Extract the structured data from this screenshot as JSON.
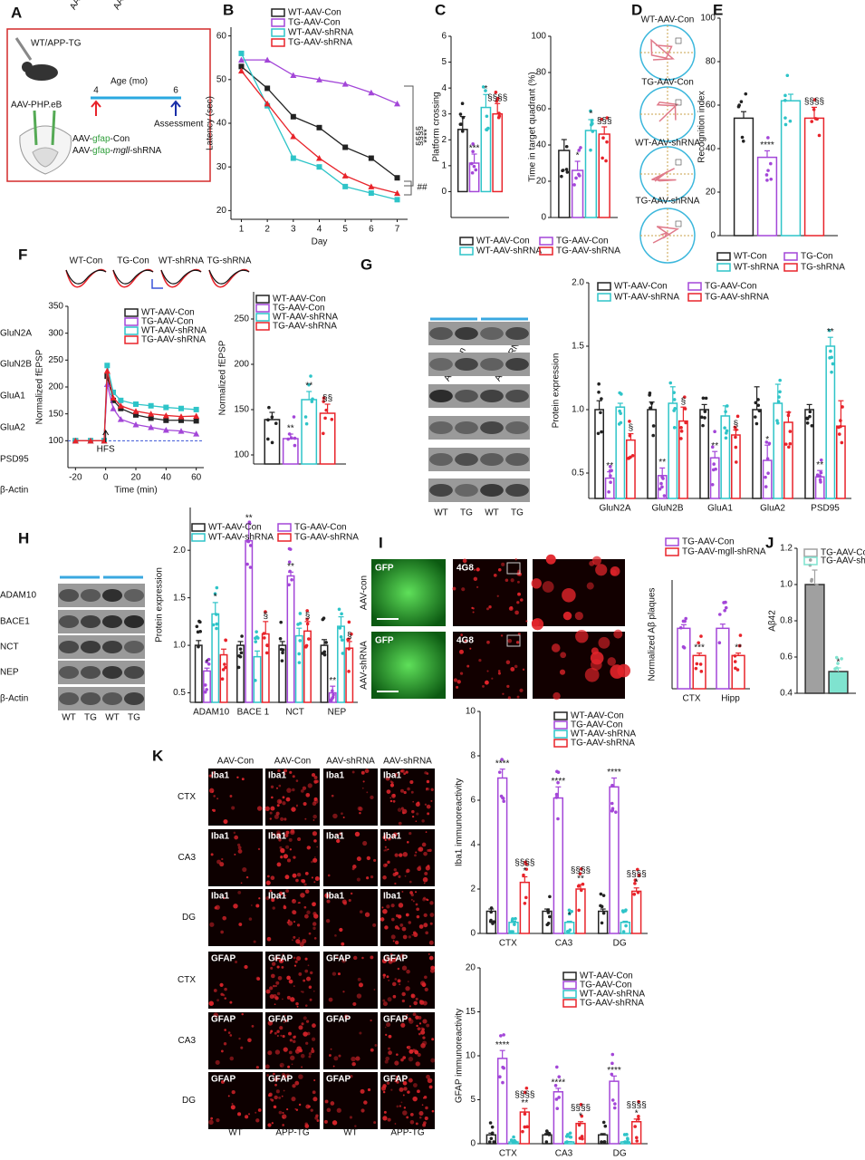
{
  "panel_labels": [
    "A",
    "B",
    "C",
    "D",
    "E",
    "F",
    "G",
    "H",
    "I",
    "J",
    "K"
  ],
  "panel_a": {
    "genotype": "WT/APP-TG",
    "vector": "AAV-PHP.eB",
    "age_title": "Age (mo)",
    "age_start": 4,
    "age_end": 6,
    "assessment": "Assessment",
    "constructs": [
      [
        "AAV-",
        "gfap",
        "-Con"
      ],
      [
        "AAV-",
        "gfap",
        "-",
        "mgll",
        "-shRNA"
      ]
    ]
  },
  "panel_d": [
    "WT-AAV-Con",
    "TG-AAV-Con",
    "WT-AAV-shRNA",
    "TG-AAV-shRNA"
  ],
  "panel_f_traces": [
    "WT-Con",
    "TG-Con",
    "WT-shRNA",
    "TG-shRNA"
  ],
  "panel_g_blot": {
    "groups": [
      "AAV-Con",
      "AAV-shRNA"
    ],
    "rows": [
      "GluN2A",
      "GluN2B",
      "GluA1",
      "GluA2",
      "PSD95",
      "β-Actin"
    ],
    "lanes": [
      "WT",
      "TG",
      "WT",
      "TG"
    ]
  },
  "panel_h_blot": {
    "groups": [
      "AAV-Con",
      "AAV-shRNA"
    ],
    "rows": [
      "ADAM10",
      "BACE1",
      "NCT",
      "NEP",
      "β-Actin"
    ],
    "lanes": [
      "WT",
      "TG",
      "WT",
      "TG"
    ]
  },
  "panel_i_images": {
    "rows": [
      "AAV-con",
      "AAV-shRNA"
    ],
    "stains": [
      "GFP",
      "4G8"
    ]
  },
  "panel_k_images": {
    "columns": [
      "AAV-Con",
      "AAV-Con",
      "AAV-shRNA",
      "AAV-shRNA"
    ],
    "stains": [
      "Iba1",
      "Iba1",
      "Iba1",
      "GFAP",
      "GFAP",
      "GFAP"
    ],
    "regions": [
      "CTX",
      "CA3",
      "DG",
      "CTX",
      "CA3",
      "DG"
    ],
    "genotypes": [
      "WT",
      "APP-TG",
      "WT",
      "APP-TG"
    ]
  },
  "chart_data": [
    {
      "type": "line",
      "y_label": "Latency (sec)",
      "x_label": "Day",
      "x": [
        1,
        2,
        3,
        4,
        5,
        6,
        7
      ],
      "xlim": [
        0.6,
        7.4
      ],
      "xticks": [
        1,
        2,
        3,
        4,
        5,
        6,
        7
      ],
      "ylim": [
        18,
        62
      ],
      "yticks": [
        20,
        30,
        40,
        50,
        60
      ],
      "notes": [
        "§§§§",
        "****",
        "##"
      ],
      "series": [
        {
          "name": "WT-AAV-Con",
          "color": "#222222",
          "marker": "square",
          "values": [
            53,
            48,
            41.5,
            39,
            34.5,
            32,
            27.5
          ]
        },
        {
          "name": "TG-AAV-Con",
          "color": "#a346d8",
          "marker": "triangle",
          "values": [
            54.5,
            54.5,
            51,
            50,
            49,
            47,
            44.5
          ]
        },
        {
          "name": "WT-AAV-shRNA",
          "color": "#2ec4c8",
          "marker": "square",
          "values": [
            56,
            44,
            32,
            30,
            25.5,
            24,
            22.5
          ]
        },
        {
          "name": "TG-AAV-shRNA",
          "color": "#e8232a",
          "marker": "triangle",
          "values": [
            52,
            44.5,
            37,
            32,
            28,
            25.5,
            24
          ]
        }
      ]
    },
    {
      "type": "bar",
      "y_label": "Platform crossing",
      "categories": [
        null
      ],
      "ylim": [
        -1,
        6
      ],
      "yticks": [
        0,
        1,
        2,
        3,
        4,
        5,
        6
      ],
      "series": [
        {
          "name": "WT-AAV-Con",
          "color": "#222222",
          "values": [
            2.4
          ],
          "errors": [
            0.5
          ]
        },
        {
          "name": "TG-AAV-Con",
          "color": "#a346d8",
          "values": [
            1.1
          ],
          "errors": [
            0.35
          ],
          "notes": [
            "***"
          ]
        },
        {
          "name": "WT-AAV-shRNA",
          "color": "#2ec4c8",
          "values": [
            3.25
          ],
          "errors": [
            0.5
          ],
          "notes": [
            "*"
          ]
        },
        {
          "name": "TG-AAV-shRNA",
          "color": "#e8232a",
          "values": [
            3.0
          ],
          "errors": [
            0.4
          ],
          "notes": [
            "§§§§"
          ]
        }
      ]
    },
    {
      "type": "bar",
      "y_label": "Time in target quadrant (%)",
      "categories": [
        null
      ],
      "ylim": [
        0,
        100
      ],
      "yticks": [
        0,
        20,
        40,
        60,
        80,
        100
      ],
      "series": [
        {
          "color": "#222222",
          "values": [
            37
          ],
          "errors": [
            6
          ]
        },
        {
          "color": "#a346d8",
          "values": [
            26
          ],
          "errors": [
            5
          ],
          "notes": [
            "*"
          ]
        },
        {
          "color": "#2ec4c8",
          "values": [
            48
          ],
          "errors": [
            6
          ],
          "notes": [
            "*"
          ]
        },
        {
          "color": "#e8232a",
          "values": [
            46
          ],
          "errors": [
            4
          ],
          "notes": [
            "§§§"
          ]
        }
      ]
    },
    {
      "type": "bar",
      "y_label": "Recognition index",
      "categories": [
        null
      ],
      "ylim": [
        0,
        100
      ],
      "yticks": [
        0,
        20,
        40,
        60,
        80,
        100
      ],
      "series": [
        {
          "name": "WT-Con",
          "color": "#222222",
          "values": [
            54
          ],
          "errors": [
            3
          ]
        },
        {
          "name": "TG-Con",
          "color": "#a346d8",
          "values": [
            36
          ],
          "errors": [
            3
          ],
          "notes": [
            "****"
          ]
        },
        {
          "name": "WT-shRNA",
          "color": "#2ec4c8",
          "values": [
            62
          ],
          "errors": [
            3
          ]
        },
        {
          "name": "TG-shRNA",
          "color": "#e8232a",
          "values": [
            54
          ],
          "errors": [
            5
          ],
          "notes": [
            "§§§§"
          ]
        }
      ]
    },
    {
      "type": "line",
      "y_label": "Normalized fEPSP",
      "x_label": "Time (min)",
      "x": [
        -20,
        -10,
        -1,
        1,
        5,
        10,
        20,
        30,
        40,
        50,
        60
      ],
      "xlim": [
        -25,
        65
      ],
      "xticks": [
        -20,
        0,
        20,
        40,
        60
      ],
      "ylim": [
        50,
        350
      ],
      "yticks": [
        100,
        150,
        200,
        250,
        300,
        350
      ],
      "baseline": 100,
      "notes": [
        "HFS"
      ],
      "series": [
        {
          "name": "WT-AAV-Con",
          "color": "#222222",
          "marker": "square",
          "values": [
            100,
            100,
            100,
            220,
            175,
            160,
            148,
            142,
            138,
            138,
            137
          ]
        },
        {
          "name": "TG-AAV-Con",
          "color": "#a346d8",
          "marker": "triangle",
          "values": [
            100,
            100,
            100,
            205,
            160,
            140,
            130,
            125,
            120,
            118,
            113
          ]
        },
        {
          "name": "WT-AAV-shRNA",
          "color": "#2ec4c8",
          "marker": "square",
          "values": [
            100,
            100,
            100,
            240,
            190,
            175,
            168,
            165,
            162,
            160,
            158
          ]
        },
        {
          "name": "TG-AAV-shRNA",
          "color": "#e8232a",
          "marker": "triangle",
          "values": [
            100,
            100,
            100,
            230,
            180,
            165,
            155,
            150,
            147,
            145,
            146
          ]
        }
      ]
    },
    {
      "type": "bar",
      "y_label": "Normalized fEPSP",
      "categories": [
        null
      ],
      "ylim": [
        90,
        280
      ],
      "yticks": [
        100,
        150,
        200,
        250
      ],
      "series": [
        {
          "name": "WT-AAV-Con",
          "color": "#222222",
          "values": [
            139
          ],
          "errors": [
            8
          ]
        },
        {
          "name": "TG-AAV-Con",
          "color": "#a346d8",
          "values": [
            118
          ],
          "errors": [
            5
          ],
          "notes": [
            "**"
          ]
        },
        {
          "name": "WT-AAV-shRNA",
          "color": "#2ec4c8",
          "values": [
            161
          ],
          "errors": [
            9
          ],
          "notes": [
            "**"
          ]
        },
        {
          "name": "TG-AAV-shRNA",
          "color": "#e8232a",
          "values": [
            146
          ],
          "errors": [
            10
          ],
          "notes": [
            "§§"
          ]
        }
      ]
    },
    {
      "type": "bar",
      "y_label": "Protein expression",
      "categories": [
        "GluN2A",
        "GluN2B",
        "GluA1",
        "GluA2",
        "PSD95"
      ],
      "ylim": [
        0.3,
        2.0
      ],
      "yticks": [
        0.5,
        {
          "value": 1,
          "label": "1.0"
        },
        1.5,
        {
          "value": 2,
          "label": "2.0"
        }
      ],
      "series": [
        {
          "name": "WT-AAV-Con",
          "color": "#222222",
          "values": [
            1,
            1,
            1,
            1,
            1
          ],
          "errors": [
            0.07,
            0.06,
            0.04,
            0.18,
            0.04
          ]
        },
        {
          "name": "TG-AAV-Con",
          "color": "#a346d8",
          "values": [
            0.46,
            0.48,
            0.62,
            0.6,
            0.47
          ],
          "errors": [
            0.05,
            0.06,
            0.05,
            0.12,
            0.05
          ],
          "notes": [
            "**",
            "**",
            "**",
            "*",
            "**"
          ]
        },
        {
          "name": "WT-AAV-shRNA",
          "color": "#2ec4c8",
          "values": [
            1.02,
            1.05,
            0.95,
            1.05,
            1.5
          ],
          "errors": [
            0.03,
            0.13,
            0.08,
            0.15,
            0.07
          ],
          "notes": [
            null,
            null,
            null,
            null,
            "**"
          ]
        },
        {
          "name": "TG-AAV-shRNA",
          "color": "#e8232a",
          "values": [
            0.76,
            0.91,
            0.8,
            0.9,
            0.87
          ],
          "errors": [
            0.05,
            0.11,
            0.04,
            0.08,
            0.2
          ],
          "notes": [
            "§",
            "§",
            "§",
            null,
            null
          ]
        }
      ]
    },
    {
      "type": "bar",
      "y_label": "Protein expression",
      "categories": [
        "ADAM10",
        "BACE 1",
        "NCT",
        "NEP"
      ],
      "ylim": [
        0.4,
        2.45
      ],
      "yticks": [
        0.5,
        {
          "value": 1,
          "label": "1.0"
        },
        1.5,
        {
          "value": 2,
          "label": "2.0"
        }
      ],
      "series": [
        {
          "name": "WT-AAV-Con",
          "color": "#222222",
          "values": [
            1,
            1,
            1,
            1
          ],
          "errors": [
            0.05,
            0.04,
            0.04,
            0.06
          ]
        },
        {
          "name": "TG-AAV-Con",
          "color": "#a346d8",
          "values": [
            0.73,
            2.1,
            1.73,
            0.5
          ],
          "errors": [
            0.03,
            0.18,
            0.04,
            0.07
          ],
          "notes": [
            "*",
            "**",
            "**",
            "**"
          ]
        },
        {
          "name": "WT-AAV-shRNA",
          "color": "#2ec4c8",
          "values": [
            1.33,
            0.88,
            1.1,
            1.2
          ],
          "errors": [
            0.12,
            0.06,
            0.08,
            0.1
          ],
          "notes": [
            "*",
            null,
            null,
            null
          ]
        },
        {
          "name": "TG-AAV-shRNA",
          "color": "#e8232a",
          "values": [
            0.9,
            1.12,
            1.15,
            0.97
          ],
          "errors": [
            0.06,
            0.13,
            0.1,
            0.07
          ],
          "notes": [
            null,
            "§",
            "§",
            "§"
          ]
        }
      ]
    },
    {
      "type": "bar",
      "y_label": "Normalized Aβ plaques",
      "categories": [
        "CTX",
        "Hipp"
      ],
      "ylim": [
        0,
        1.8
      ],
      "series": [
        {
          "name": "TG-AAV-Con",
          "color": "#a346d8",
          "values": [
            1.0,
            1.0
          ],
          "errors": [
            0.06,
            0.07
          ]
        },
        {
          "name": "TG-AAV-mgll-shRNA",
          "color": "#e8232a",
          "values": [
            0.55,
            0.55
          ],
          "errors": [
            0.04,
            0.04
          ],
          "notes": [
            "***",
            "**"
          ]
        }
      ]
    },
    {
      "type": "bar",
      "y_label": "Aβ42",
      "categories": [
        null
      ],
      "ylim": [
        0.4,
        1.2
      ],
      "yticks": [
        0.4,
        0.6,
        0.8,
        {
          "value": 1,
          "label": "1.0"
        },
        1.2
      ],
      "filled": true,
      "series": [
        {
          "name": "TG-AAV-Con",
          "color": "#a0a0a0",
          "values": [
            1.0
          ],
          "errors": [
            0.08
          ]
        },
        {
          "name": "TG-AAV-shRNA",
          "color": "#7fe3cf",
          "values": [
            0.52
          ],
          "errors": [
            0.02
          ],
          "notes": [
            "*"
          ]
        }
      ]
    },
    {
      "type": "bar",
      "y_label": "Iba1 immunoreactivity",
      "categories": [
        "CTX",
        "CA3",
        "DG"
      ],
      "ylim": [
        0,
        10
      ],
      "yticks": [
        0,
        2,
        4,
        6,
        8,
        10
      ],
      "series": [
        {
          "name": "WT-AAV-Con",
          "color": "#222222",
          "values": [
            1,
            1,
            1
          ],
          "errors": [
            0.1,
            0.1,
            0.1
          ]
        },
        {
          "name": "TG-AAV-Con",
          "color": "#a346d8",
          "values": [
            7,
            6.1,
            6.6
          ],
          "errors": [
            0.4,
            0.5,
            0.4
          ],
          "notes": [
            "****",
            "****",
            "****"
          ]
        },
        {
          "name": "WT-AAV-shRNA",
          "color": "#2ec4c8",
          "values": [
            0.5,
            0.5,
            0.5
          ],
          "errors": [
            0.05,
            0.05,
            0.05
          ],
          "notes": [
            null,
            "*",
            null
          ]
        },
        {
          "name": "TG-AAV-shRNA",
          "color": "#e8232a",
          "values": [
            2.3,
            2.0,
            1.9
          ],
          "errors": [
            0.25,
            0.2,
            0.15
          ],
          "notes": [
            [
              "§§§§",
              "*"
            ],
            [
              "§§§§",
              "**"
            ],
            [
              "§§§§",
              "*"
            ]
          ]
        }
      ]
    },
    {
      "type": "bar",
      "y_label": "GFAP immunoreactivity",
      "categories": [
        "CTX",
        "CA3",
        "DG"
      ],
      "ylim": [
        0,
        20
      ],
      "yticks": [
        0,
        5,
        10,
        15,
        20
      ],
      "series": [
        {
          "name": "WT-AAV-Con",
          "color": "#222222",
          "values": [
            1,
            1,
            1
          ],
          "errors": [
            0.2,
            0.15,
            0.15
          ]
        },
        {
          "name": "TG-AAV-Con",
          "color": "#a346d8",
          "values": [
            9.7,
            5.9,
            7.1
          ],
          "errors": [
            0.9,
            0.4,
            0.6
          ],
          "notes": [
            "****",
            "****",
            "****"
          ]
        },
        {
          "name": "WT-AAV-shRNA",
          "color": "#2ec4c8",
          "values": [
            0.2,
            0.2,
            0.2
          ],
          "errors": [
            0.05,
            0.05,
            0.05
          ]
        },
        {
          "name": "TG-AAV-shRNA",
          "color": "#e8232a",
          "values": [
            3.6,
            2.3,
            2.5
          ],
          "errors": [
            0.4,
            0.2,
            0.3
          ],
          "notes": [
            [
              "§§§§",
              "**"
            ],
            [
              "§§§§",
              "*"
            ],
            [
              "§§§§",
              "*"
            ]
          ]
        }
      ]
    }
  ]
}
